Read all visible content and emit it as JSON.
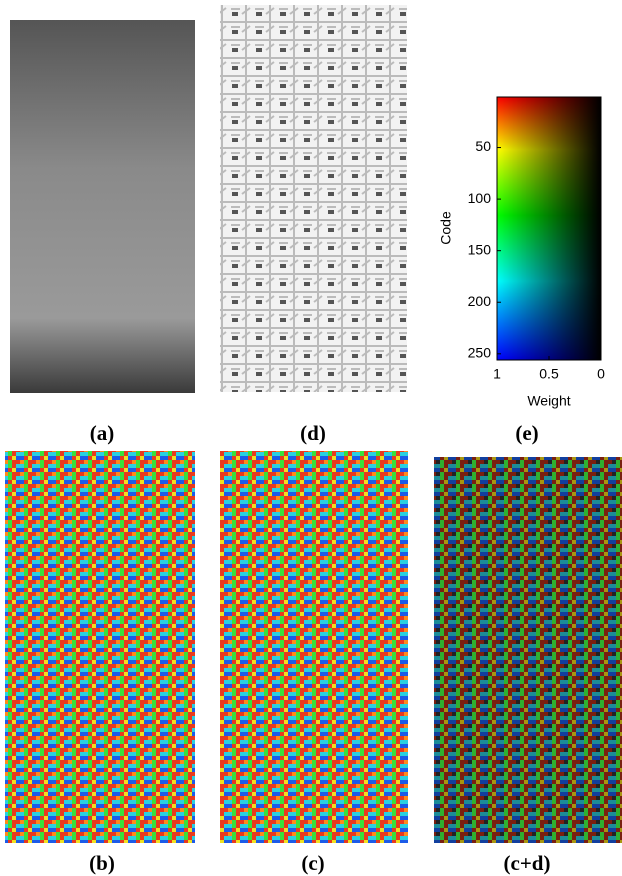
{
  "panels": [
    {
      "label": "(a)"
    },
    {
      "label": "(d)"
    },
    {
      "label": "(e)"
    },
    {
      "label": "(b)"
    },
    {
      "label": "(c)"
    },
    {
      "label": "(c+d)"
    }
  ],
  "colorbar": {
    "ylabel": "Code",
    "xlabel": "Weight",
    "ylim": [
      1,
      256
    ],
    "yticks": [
      50,
      100,
      150,
      200,
      250
    ],
    "xlim": [
      1,
      0
    ],
    "xticks": [
      1,
      0.5,
      0
    ]
  }
}
